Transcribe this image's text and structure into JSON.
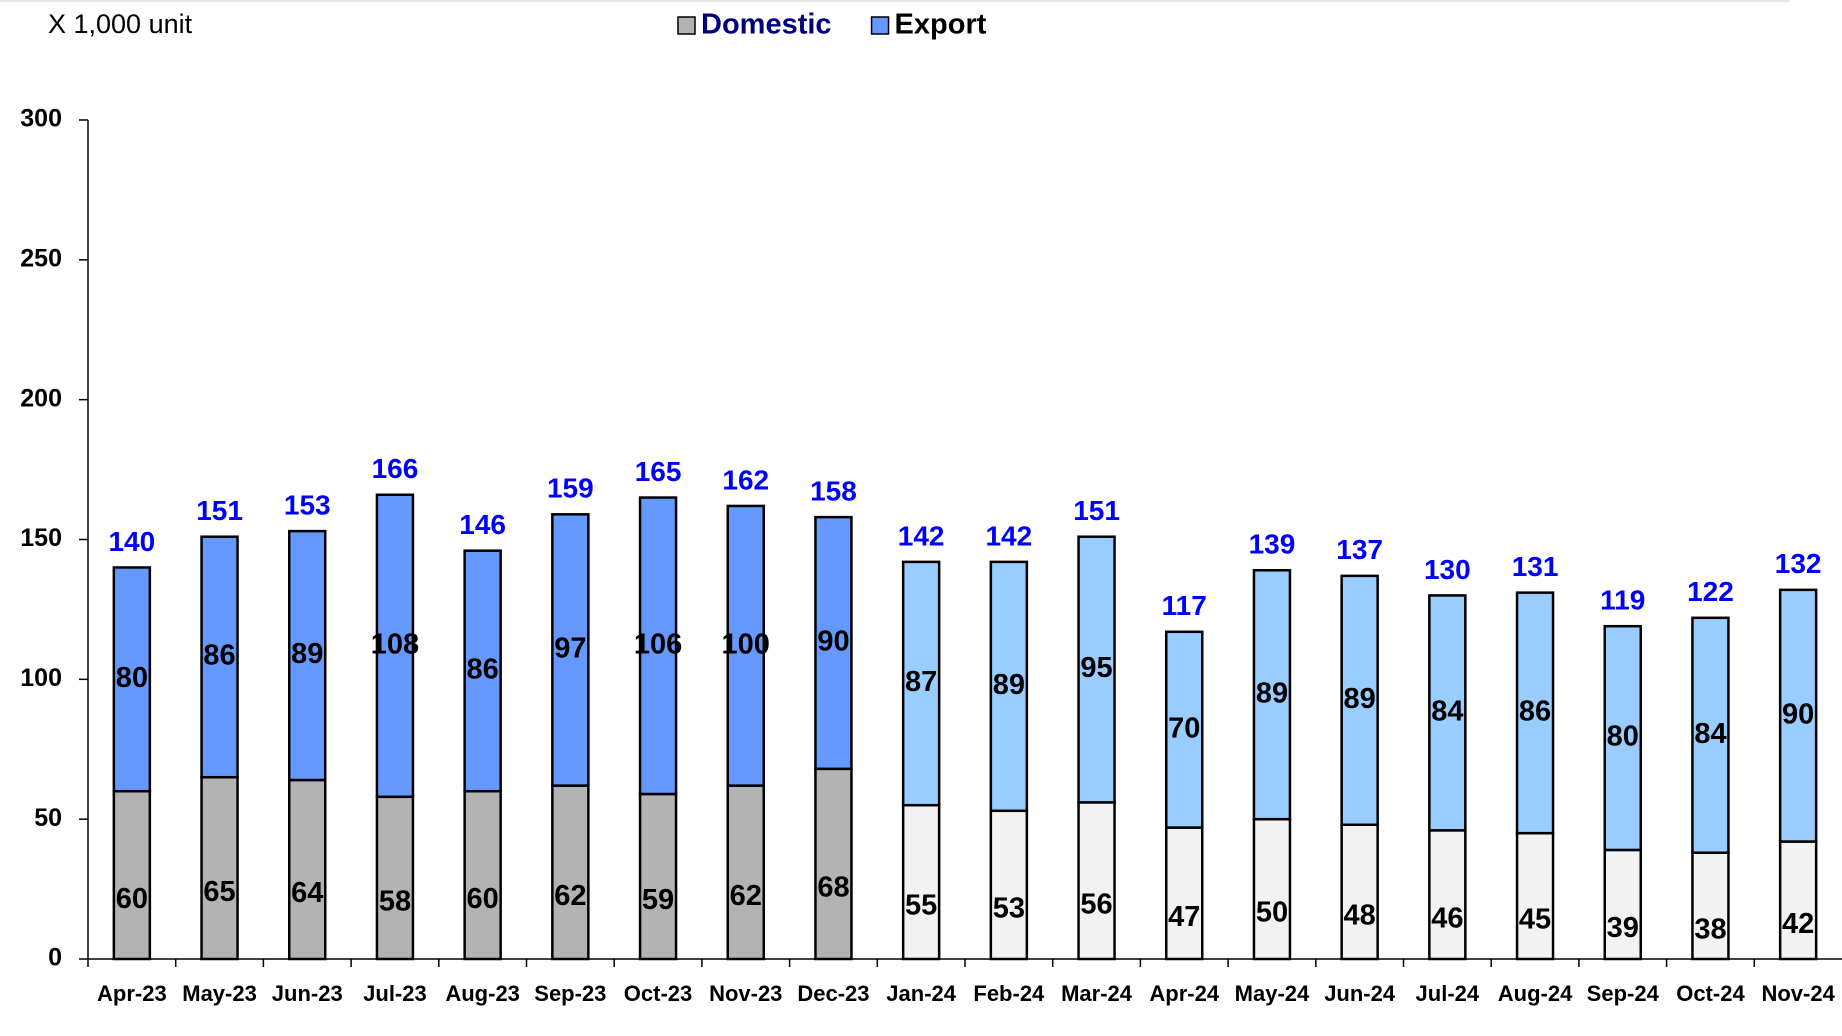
{
  "chart_data": {
    "type": "stacked_bar",
    "unit_label": "X 1,000 unit",
    "categories": [
      "Apr-23",
      "May-23",
      "Jun-23",
      "Jul-23",
      "Aug-23",
      "Sep-23",
      "Oct-23",
      "Nov-23",
      "Dec-23",
      "Jan-24",
      "Feb-24",
      "Mar-24",
      "Apr-24",
      "May-24",
      "Jun-24",
      "Jul-24",
      "Aug-24",
      "Sep-24",
      "Oct-24",
      "Nov-24"
    ],
    "series": [
      {
        "name": "Domestic",
        "color": "#b3b3b3",
        "point_colors": [
          "#b3b3b3",
          "#b3b3b3",
          "#b3b3b3",
          "#b3b3b3",
          "#b3b3b3",
          "#b3b3b3",
          "#b3b3b3",
          "#b3b3b3",
          "#b3b3b3",
          "#f2f2f2",
          "#f2f2f2",
          "#f2f2f2",
          "#f2f2f2",
          "#f2f2f2",
          "#f2f2f2",
          "#f2f2f2",
          "#f2f2f2",
          "#f2f2f2",
          "#f2f2f2",
          "#f2f2f2"
        ],
        "values": [
          60,
          65,
          64,
          58,
          60,
          62,
          59,
          62,
          68,
          55,
          53,
          56,
          47,
          50,
          48,
          46,
          45,
          39,
          38,
          42
        ]
      },
      {
        "name": "Export",
        "color": "#6699ff",
        "point_colors": [
          "#6699ff",
          "#6699ff",
          "#6699ff",
          "#6699ff",
          "#6699ff",
          "#6699ff",
          "#6699ff",
          "#6699ff",
          "#6699ff",
          "#99ccff",
          "#99ccff",
          "#99ccff",
          "#99ccff",
          "#99ccff",
          "#99ccff",
          "#99ccff",
          "#99ccff",
          "#99ccff",
          "#99ccff",
          "#99ccff"
        ],
        "values": [
          80,
          86,
          89,
          108,
          86,
          97,
          106,
          100,
          90,
          87,
          89,
          95,
          70,
          89,
          89,
          84,
          86,
          80,
          84,
          90
        ]
      }
    ],
    "totals": [
      140,
      151,
      153,
      166,
      146,
      159,
      165,
      162,
      158,
      142,
      142,
      151,
      117,
      139,
      137,
      130,
      131,
      119,
      122,
      132
    ],
    "ylim": [
      0,
      300
    ],
    "yticks": [
      0,
      50,
      100,
      150,
      200,
      250,
      300
    ],
    "grid": false
  }
}
